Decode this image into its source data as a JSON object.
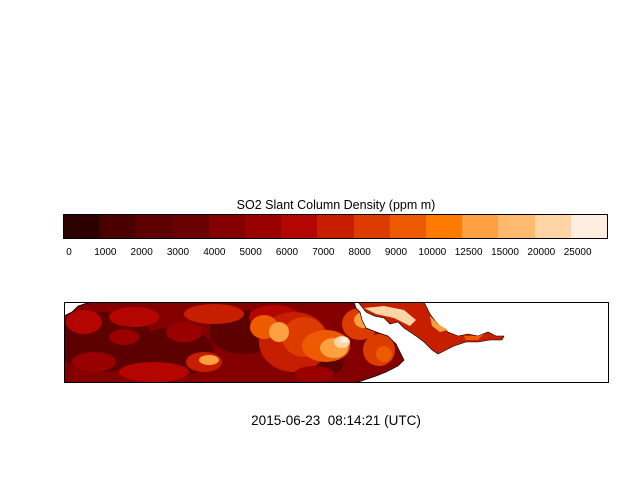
{
  "colorbar": {
    "title": "SO2 Slant Column Density (ppm m)",
    "colors": [
      "#2d0000",
      "#4b0000",
      "#5c0000",
      "#6b0000",
      "#840000",
      "#9a0000",
      "#b50500",
      "#c81e00",
      "#dc3c00",
      "#ee5a00",
      "#ff7a00",
      "#ffa040",
      "#ffba70",
      "#ffd5a5",
      "#fdeee0"
    ],
    "tick_labels": [
      "0",
      "1000",
      "2000",
      "3000",
      "4000",
      "5000",
      "6000",
      "7000",
      "8000",
      "9000",
      "10000",
      "12500",
      "15000",
      "20000",
      "25000"
    ]
  },
  "map": {
    "background_color": "#ffffff",
    "land_colors": [
      "#5c0000",
      "#840000",
      "#9a0000",
      "#b50500",
      "#c81e00",
      "#dc3c00",
      "#ee5a00",
      "#ffa040",
      "#ffd5a5",
      "#fdeee0"
    ]
  },
  "timestamp": {
    "date": "2015-06-23",
    "time": "08:14:21",
    "zone": "(UTC)"
  }
}
